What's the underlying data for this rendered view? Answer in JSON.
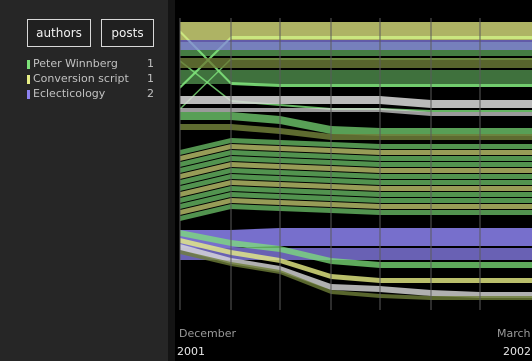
{
  "toolbar": {
    "authors_label": "authors",
    "posts_label": "posts"
  },
  "legend": [
    {
      "name": "Peter Winnberg",
      "count": "1",
      "color": "#7ee27a"
    },
    {
      "name": "Conversion script",
      "count": "1",
      "color": "#e8ef86"
    },
    {
      "name": "Eclecticology",
      "count": "2",
      "color": "#8c82f0"
    }
  ],
  "axis": {
    "start_month": "December",
    "start_year": "2001",
    "end_month": "March",
    "end_year": "2002"
  },
  "colors": {
    "background": "#000000",
    "panel": "#262626",
    "author_green": "#7ee27a",
    "author_yellow": "#e8ef86",
    "author_purple": "#8c82f0",
    "olive": "#6e7e38",
    "grey_white": "#dcdcdc"
  }
}
